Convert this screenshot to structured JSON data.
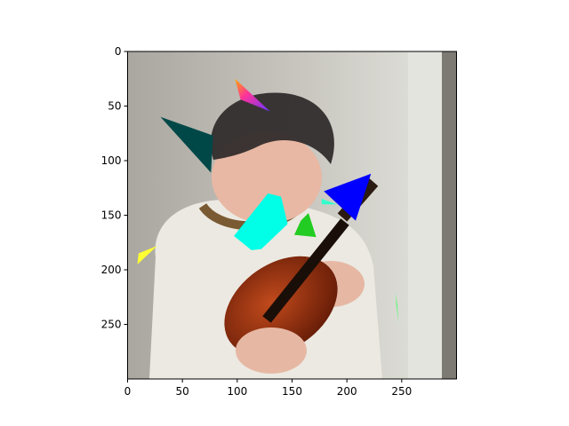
{
  "chart_data": {
    "type": "image",
    "title": "",
    "xlabel": "",
    "ylabel": "",
    "xlim": [
      0,
      300
    ],
    "ylim": [
      300,
      0
    ],
    "y_inverted": true,
    "x_ticks": [
      0,
      50,
      100,
      150,
      200,
      250
    ],
    "y_ticks": [
      0,
      50,
      100,
      150,
      200,
      250
    ],
    "grid": false,
    "legend": "none",
    "image_content": "photo of a young man holding a violin, with colored triangles overlaid",
    "overlays": [
      {
        "name": "dark-teal-triangle",
        "color": "#004848",
        "points": [
          [
            30,
            60
          ],
          [
            78,
            77
          ],
          [
            76,
            111
          ]
        ]
      },
      {
        "name": "rainbow-triangle",
        "color": "#9933cc",
        "points": [
          [
            98,
            25
          ],
          [
            130,
            55
          ],
          [
            103,
            44
          ]
        ]
      },
      {
        "name": "cyan-quad",
        "color": "#00ffe6",
        "points": [
          [
            128,
            130
          ],
          [
            140,
            133
          ],
          [
            146,
            158
          ],
          [
            122,
            181
          ],
          [
            113,
            182
          ],
          [
            97,
            169
          ]
        ]
      },
      {
        "name": "green-triangle",
        "color": "#22cc22",
        "points": [
          [
            158,
            155
          ],
          [
            165,
            148
          ],
          [
            172,
            170
          ],
          [
            152,
            168
          ]
        ]
      },
      {
        "name": "blue-triangle",
        "color": "#0000ff",
        "points": [
          [
            179,
            128
          ],
          [
            222,
            112
          ],
          [
            208,
            155
          ]
        ]
      },
      {
        "name": "aqua-sliver",
        "color": "#33ffcc",
        "points": [
          [
            177,
            135
          ],
          [
            191,
            140
          ],
          [
            177,
            140
          ]
        ]
      },
      {
        "name": "yellow-triangle",
        "color": "#ffff33",
        "points": [
          [
            9,
            195
          ],
          [
            27,
            178
          ],
          [
            10,
            185
          ]
        ]
      },
      {
        "name": "green-sliver",
        "color": "#44ff66",
        "points": [
          [
            244,
            221
          ],
          [
            247,
            249
          ],
          [
            246,
            232
          ]
        ]
      }
    ]
  },
  "colors": {
    "wall_left": "#b4b2aa",
    "wall_right": "#dcdcd6",
    "shirt": "#ece9e2",
    "skin": "#e8b8a4",
    "hair": "#2d2828",
    "violin": "#8a2a10",
    "violin_dark": "#1a0e08",
    "collar": "#7a5a32"
  }
}
